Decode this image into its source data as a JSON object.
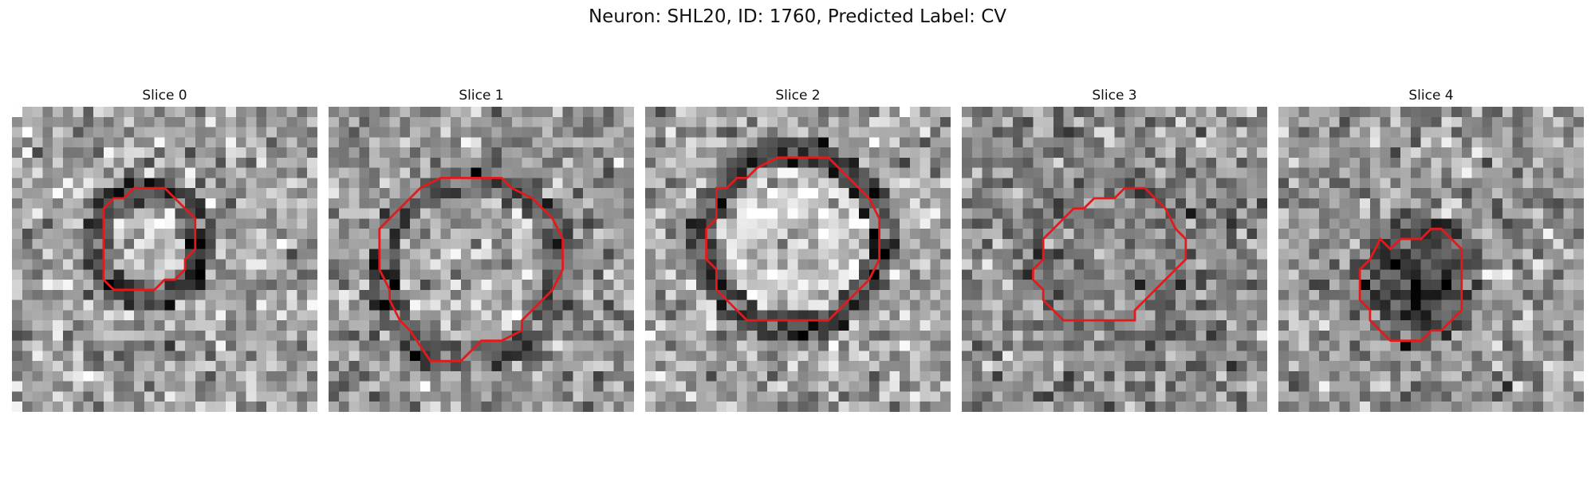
{
  "figure": {
    "title": "Neuron: SHL20, ID: 1760, Predicted Label: CV"
  },
  "panels": [
    {
      "title": "Slice 0"
    },
    {
      "title": "Slice 1"
    },
    {
      "title": "Slice 2"
    },
    {
      "title": "Slice 3"
    },
    {
      "title": "Slice 4"
    }
  ],
  "colors": {
    "contour": "#e31a1c",
    "background": "#ffffff"
  }
}
